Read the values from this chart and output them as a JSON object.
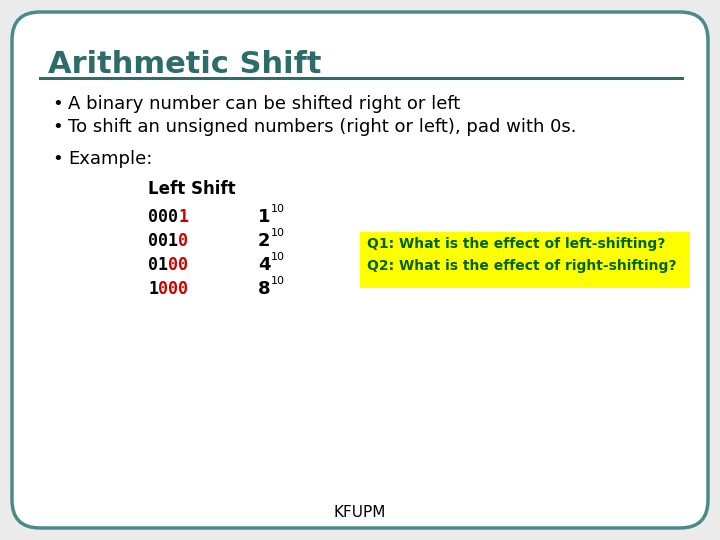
{
  "title": "Arithmetic Shift",
  "title_color": "#2E6B6B",
  "bg_color": "#EBEBEB",
  "border_color": "#4A8A8A",
  "line_color": "#2E6B6B",
  "bullet1": "A binary number can be shifted right or left",
  "bullet2": "To shift an unsigned numbers (right or left), pad with 0s.",
  "bullet3": "Example:",
  "table_header": "Left Shift",
  "rows": [
    {
      "black": "000",
      "red": "1",
      "value": "1",
      "sub": "10"
    },
    {
      "black": "001",
      "red": "0",
      "value": "2",
      "sub": "10"
    },
    {
      "black": "01",
      "red": "00",
      "value": "4",
      "sub": "10"
    },
    {
      "black": "1",
      "red": "000",
      "value": "8",
      "sub": "10"
    }
  ],
  "q_text_line1": "Q1: What is the effect of left-shifting?",
  "q_text_line2": "Q2: What is the effect of right-shifting?",
  "q_bg_color": "#FFFF00",
  "q_text_color": "#006400",
  "footer": "KFUPM",
  "text_color": "#000000",
  "red_color": "#CC0000",
  "title_fontsize": 22,
  "body_fontsize": 13,
  "mono_fontsize": 12,
  "q_fontsize": 10,
  "footer_fontsize": 11
}
